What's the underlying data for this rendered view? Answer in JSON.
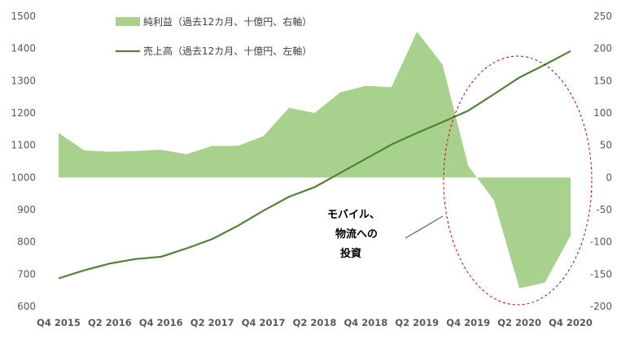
{
  "chart_data": {
    "type": "area",
    "x": [
      "Q4 2015",
      "Q1 2016",
      "Q2 2016",
      "Q3 2016",
      "Q4 2016",
      "Q1 2017",
      "Q2 2017",
      "Q3 2017",
      "Q4 2017",
      "Q1 2018",
      "Q2 2018",
      "Q3 2018",
      "Q4 2018",
      "Q1 2019",
      "Q2 2019",
      "Q3 2019",
      "Q4 2019",
      "Q1 2020",
      "Q2 2020",
      "Q3 2020",
      "Q4 2020"
    ],
    "xtick_labels": [
      "Q4 2015",
      "Q2 2016",
      "Q4 2016",
      "Q2 2017",
      "Q4 2017",
      "Q2 2018",
      "Q4 2018",
      "Q2 2019",
      "Q4 2019",
      "Q2 2020",
      "Q4 2020"
    ],
    "left_axis": {
      "ylim": [
        600,
        1500
      ],
      "ticks": [
        "600",
        "700",
        "800",
        "900",
        "1000",
        "1100",
        "1200",
        "1300",
        "1400",
        "1500"
      ]
    },
    "right_axis": {
      "ylim": [
        -200,
        250
      ],
      "ticks": [
        "-200",
        "-150",
        "-100",
        "-50",
        "0",
        "50",
        "100",
        "150",
        "200",
        "250"
      ]
    },
    "series": [
      {
        "name": "純利益（過去12カ月、十億円、右軸）",
        "type": "area",
        "axis": "right",
        "color": "#a9d18e",
        "values": [
          69,
          42,
          40,
          41,
          43,
          36,
          49,
          49,
          64,
          108,
          100,
          132,
          142,
          140,
          226,
          175,
          18,
          -35,
          -172,
          -163,
          -90
        ]
      },
      {
        "name": "売上高（過去12カ月、十億円、左軸）",
        "type": "line",
        "axis": "left",
        "color": "#548235",
        "values": [
          687,
          712,
          733,
          747,
          754,
          780,
          809,
          850,
          897,
          940,
          970,
          1014,
          1058,
          1102,
          1138,
          1172,
          1207,
          1258,
          1310,
          1350,
          1392
        ]
      }
    ],
    "annotation": {
      "lines": [
        "モバイル、",
        "物流への",
        "投資"
      ]
    },
    "grid": false,
    "legend_position": "top-left"
  }
}
